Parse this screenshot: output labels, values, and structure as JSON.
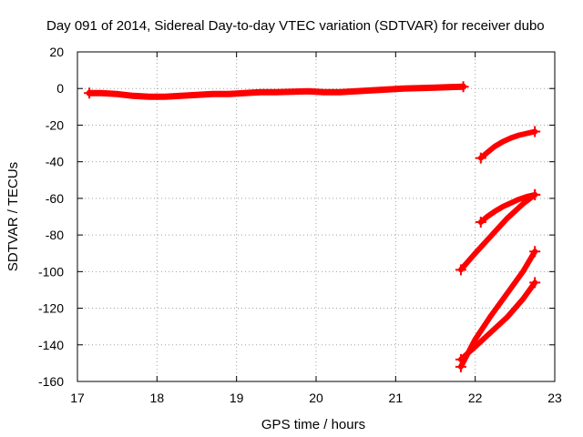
{
  "chart_data": {
    "type": "line",
    "title": "Day 091 of 2014, Sidereal Day-to-day VTEC variation (SDTVAR) for receiver dubo",
    "xlabel": "GPS time / hours",
    "ylabel": "SDTVAR / TECUs",
    "xlim": [
      17,
      23
    ],
    "ylim": [
      -160,
      20
    ],
    "xticks": [
      17,
      18,
      19,
      20,
      21,
      22,
      23
    ],
    "yticks": [
      -160,
      -140,
      -120,
      -100,
      -80,
      -60,
      -40,
      -20,
      0,
      20
    ],
    "grid": true,
    "legend": "none",
    "color": "#ff0000",
    "series": [
      {
        "x": [
          17.15,
          17.3,
          17.5,
          17.7,
          17.9,
          18.1,
          18.3,
          18.5,
          18.7,
          18.9,
          19.1,
          19.3,
          19.5,
          19.7,
          19.9,
          20.1,
          20.3,
          20.5,
          20.7,
          20.9,
          21.1,
          21.3,
          21.5,
          21.7,
          21.85
        ],
        "y": [
          -2.5,
          -2.5,
          -3,
          -4,
          -4.5,
          -4.5,
          -4,
          -3.5,
          -3,
          -3,
          -2.5,
          -2,
          -2,
          -1.8,
          -1.5,
          -2,
          -2,
          -1.5,
          -1,
          -0.5,
          0,
          0.2,
          0.5,
          0.8,
          1
        ]
      },
      {
        "x": [
          22.07,
          22.15,
          22.25,
          22.35,
          22.45,
          22.55,
          22.65,
          22.75
        ],
        "y": [
          -38,
          -35,
          -31.5,
          -29,
          -27,
          -25.5,
          -24.5,
          -23.5
        ]
      },
      {
        "x": [
          22.07,
          22.15,
          22.25,
          22.35,
          22.45,
          22.55,
          22.65,
          22.75
        ],
        "y": [
          -73,
          -70,
          -67,
          -64.5,
          -62.5,
          -60.5,
          -59,
          -58
        ]
      },
      {
        "x": [
          21.82,
          22.0,
          22.2,
          22.4,
          22.6,
          22.75
        ],
        "y": [
          -99,
          -90,
          -80.5,
          -71,
          -63,
          -58
        ]
      },
      {
        "x": [
          21.82,
          22.0,
          22.2,
          22.4,
          22.6,
          22.75
        ],
        "y": [
          -148,
          -141,
          -133,
          -125,
          -115,
          -106
        ]
      },
      {
        "x": [
          21.82,
          22.0,
          22.2,
          22.4,
          22.6,
          22.75
        ],
        "y": [
          -152,
          -137,
          -124,
          -112,
          -100,
          -89
        ]
      }
    ]
  }
}
